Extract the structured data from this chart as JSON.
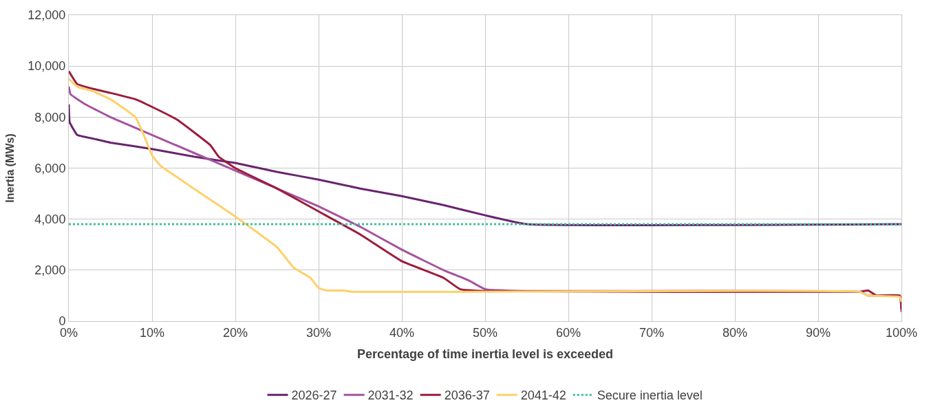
{
  "chart_data": {
    "type": "line",
    "xlabel": "Percentage of time inertia level is exceeded",
    "ylabel": "Inertia (MWs)",
    "xlim": [
      0,
      100
    ],
    "xticks": [
      {
        "value": 0,
        "label": "0%"
      },
      {
        "value": 10,
        "label": "10%"
      },
      {
        "value": 20,
        "label": "20%"
      },
      {
        "value": 30,
        "label": "30%"
      },
      {
        "value": 40,
        "label": "40%"
      },
      {
        "value": 50,
        "label": "50%"
      },
      {
        "value": 60,
        "label": "60%"
      },
      {
        "value": 70,
        "label": "70%"
      },
      {
        "value": 80,
        "label": "80%"
      },
      {
        "value": 90,
        "label": "90%"
      },
      {
        "value": 100,
        "label": "100%"
      }
    ],
    "ylim": [
      0,
      12000
    ],
    "yticks": [
      {
        "value": 0,
        "label": "0"
      },
      {
        "value": 2000,
        "label": "2,000"
      },
      {
        "value": 4000,
        "label": "4,000"
      },
      {
        "value": 6000,
        "label": "6,000"
      },
      {
        "value": 8000,
        "label": "8,000"
      },
      {
        "value": 10000,
        "label": "10,000"
      },
      {
        "value": 12000,
        "label": "12,000"
      }
    ],
    "grid": true,
    "legend": "bottom",
    "line_style": "solid",
    "series": [
      {
        "name": "2026-27",
        "color": "#68246e",
        "x": [
          0,
          0.1,
          1,
          3,
          5,
          10,
          15,
          20,
          25,
          30,
          35,
          40,
          45,
          50,
          55,
          100
        ],
        "values": [
          8500,
          7800,
          7300,
          7150,
          7000,
          6750,
          6450,
          6200,
          5850,
          5550,
          5200,
          4900,
          4550,
          4150,
          3800,
          3800
        ]
      },
      {
        "name": "2031-32",
        "color": "#a5529f",
        "x": [
          0,
          0.2,
          2,
          5,
          10,
          15,
          20,
          25,
          30,
          35,
          40,
          45,
          48,
          50,
          55,
          95,
          96,
          99.8,
          100
        ],
        "values": [
          9200,
          8900,
          8500,
          8000,
          7300,
          6600,
          5900,
          5200,
          4500,
          3700,
          2800,
          2000,
          1600,
          1250,
          1180,
          1150,
          1000,
          1000,
          350
        ]
      },
      {
        "name": "2036-37",
        "color": "#9b1c3d",
        "x": [
          0,
          1,
          3,
          5,
          8,
          10,
          13,
          17,
          18,
          20,
          25,
          30,
          35,
          40,
          45,
          47,
          50,
          95,
          96,
          97,
          99.8,
          100
        ],
        "values": [
          9800,
          9300,
          9100,
          8950,
          8700,
          8400,
          7900,
          6900,
          6450,
          6000,
          5200,
          4300,
          3400,
          2350,
          1700,
          1250,
          1180,
          1150,
          1200,
          1000,
          1000,
          450
        ]
      },
      {
        "name": "2041-42",
        "color": "#ffd06a",
        "x": [
          0,
          1,
          3,
          5,
          8,
          9,
          10,
          11,
          15,
          20,
          25,
          27,
          29,
          30,
          31,
          33,
          34,
          95,
          96,
          99.8,
          100
        ],
        "values": [
          9500,
          9200,
          9000,
          8700,
          8000,
          7300,
          6500,
          6100,
          5200,
          4100,
          2900,
          2100,
          1700,
          1300,
          1200,
          1200,
          1150,
          1150,
          1000,
          950,
          750
        ]
      }
    ],
    "ref_lines": [
      {
        "axis": "y",
        "value": 3800,
        "label": "Secure inertia level",
        "color": "#3fbfa0",
        "line_style": "dotted"
      }
    ]
  }
}
